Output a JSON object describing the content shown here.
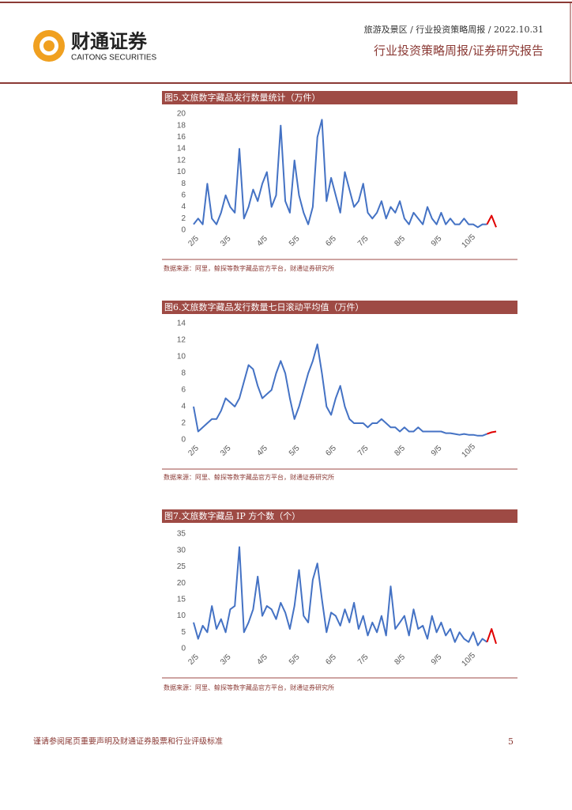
{
  "header": {
    "company": "财通证券",
    "company_en": "CAITONG SECURITIES",
    "breadcrumb": "旅游及景区 / 行业投资策略周报 / 2022.10.31",
    "report_type": "行业投资策略周报/证券研究报告"
  },
  "chart_data": [
    {
      "type": "line",
      "title": "图5.文旅数字藏品发行数量统计（万件）",
      "categories": [
        "2/5",
        null,
        null,
        null,
        null,
        null,
        null,
        "3/5",
        null,
        null,
        null,
        null,
        null,
        null,
        null,
        "4/5",
        null,
        null,
        null,
        null,
        null,
        null,
        "5/5",
        null,
        null,
        null,
        null,
        null,
        null,
        null,
        "6/5",
        null,
        null,
        null,
        null,
        null,
        null,
        "7/5",
        null,
        null,
        null,
        null,
        null,
        null,
        null,
        "8/5",
        null,
        null,
        null,
        null,
        null,
        null,
        null,
        "9/5",
        null,
        null,
        null,
        null,
        null,
        null,
        "10/5",
        null,
        null,
        null,
        null,
        null,
        null
      ],
      "series": [
        {
          "color": "#4472c4",
          "values": [
            1,
            2,
            1,
            8,
            2,
            1,
            3,
            6,
            4,
            3,
            14,
            2,
            4,
            7,
            5,
            8,
            10,
            4,
            6,
            18,
            5,
            3,
            12,
            6,
            3,
            1,
            4,
            16,
            19,
            5,
            9,
            6,
            3,
            10,
            7,
            4,
            5,
            8,
            3,
            2,
            3,
            5,
            2,
            4,
            3,
            5,
            2,
            1,
            3,
            2,
            1,
            4,
            2,
            1,
            3,
            1,
            2,
            1,
            1,
            2,
            1,
            1,
            0.5,
            1,
            1,
            null,
            null
          ]
        },
        {
          "color": "#e00000",
          "values": [
            null,
            null,
            null,
            null,
            null,
            null,
            null,
            null,
            null,
            null,
            null,
            null,
            null,
            null,
            null,
            null,
            null,
            null,
            null,
            null,
            null,
            null,
            null,
            null,
            null,
            null,
            null,
            null,
            null,
            null,
            null,
            null,
            null,
            null,
            null,
            null,
            null,
            null,
            null,
            null,
            null,
            null,
            null,
            null,
            null,
            null,
            null,
            null,
            null,
            null,
            null,
            null,
            null,
            null,
            null,
            null,
            null,
            null,
            null,
            null,
            null,
            null,
            null,
            null,
            1,
            2.5,
            0.5
          ]
        }
      ],
      "ylim": [
        0,
        20
      ],
      "yticks": [
        0,
        2,
        4,
        6,
        8,
        10,
        12,
        14,
        16,
        18,
        20
      ],
      "source": "数据来源：阿里，鲸探等数字藏品官方平台，财通证券研究所"
    },
    {
      "type": "line",
      "title": "图6.文旅数字藏品发行数量七日滚动平均值（万件）",
      "categories": [
        "2/5",
        null,
        null,
        null,
        null,
        null,
        null,
        "3/5",
        null,
        null,
        null,
        null,
        null,
        null,
        null,
        "4/5",
        null,
        null,
        null,
        null,
        null,
        null,
        "5/5",
        null,
        null,
        null,
        null,
        null,
        null,
        null,
        "6/5",
        null,
        null,
        null,
        null,
        null,
        null,
        "7/5",
        null,
        null,
        null,
        null,
        null,
        null,
        null,
        "8/5",
        null,
        null,
        null,
        null,
        null,
        null,
        null,
        "9/5",
        null,
        null,
        null,
        null,
        null,
        null,
        "10/5",
        null,
        null,
        null,
        null,
        null,
        null
      ],
      "series": [
        {
          "color": "#4472c4",
          "values": [
            4,
            1,
            1.5,
            2,
            2.5,
            2.5,
            3.5,
            5,
            4.5,
            4,
            5,
            7,
            9,
            8.5,
            6.5,
            5,
            5.5,
            6,
            8,
            9.5,
            8,
            5,
            2.5,
            4,
            6,
            8,
            9.5,
            11.5,
            8,
            4,
            3,
            5,
            6.5,
            4,
            2.5,
            2,
            2,
            2,
            1.5,
            2,
            2,
            2.5,
            2,
            1.5,
            1.5,
            1,
            1.5,
            1,
            1,
            1.5,
            1,
            1,
            1,
            1,
            1,
            0.8,
            0.8,
            0.7,
            0.6,
            0.7,
            0.6,
            0.6,
            0.5,
            0.5,
            0.7,
            null,
            null
          ]
        },
        {
          "color": "#e00000",
          "values": [
            null,
            null,
            null,
            null,
            null,
            null,
            null,
            null,
            null,
            null,
            null,
            null,
            null,
            null,
            null,
            null,
            null,
            null,
            null,
            null,
            null,
            null,
            null,
            null,
            null,
            null,
            null,
            null,
            null,
            null,
            null,
            null,
            null,
            null,
            null,
            null,
            null,
            null,
            null,
            null,
            null,
            null,
            null,
            null,
            null,
            null,
            null,
            null,
            null,
            null,
            null,
            null,
            null,
            null,
            null,
            null,
            null,
            null,
            null,
            null,
            null,
            null,
            null,
            null,
            0.7,
            0.9,
            1
          ]
        }
      ],
      "ylim": [
        0,
        14
      ],
      "yticks": [
        0,
        2,
        4,
        6,
        8,
        10,
        12,
        14
      ],
      "source": "数据来源：阿里、鲸探等数字藏品官方平台，财通证券研究所"
    },
    {
      "type": "line",
      "title": "图7.文旅数字藏品 IP 方个数（个）",
      "categories": [
        "2/5",
        null,
        null,
        null,
        null,
        null,
        null,
        "3/5",
        null,
        null,
        null,
        null,
        null,
        null,
        null,
        "4/5",
        null,
        null,
        null,
        null,
        null,
        null,
        "5/5",
        null,
        null,
        null,
        null,
        null,
        null,
        null,
        "6/5",
        null,
        null,
        null,
        null,
        null,
        null,
        "7/5",
        null,
        null,
        null,
        null,
        null,
        null,
        null,
        "8/5",
        null,
        null,
        null,
        null,
        null,
        null,
        null,
        "9/5",
        null,
        null,
        null,
        null,
        null,
        null,
        "10/5",
        null,
        null,
        null,
        null,
        null,
        null
      ],
      "series": [
        {
          "color": "#4472c4",
          "values": [
            8,
            3,
            7,
            5,
            13,
            6,
            9,
            5,
            12,
            13,
            31,
            5,
            8,
            12,
            22,
            10,
            13,
            12,
            9,
            14,
            11,
            6,
            13,
            24,
            10,
            8,
            21,
            26,
            15,
            5,
            11,
            10,
            7,
            12,
            8,
            14,
            6,
            10,
            4,
            8,
            5,
            10,
            4,
            19,
            6,
            8,
            10,
            4,
            12,
            6,
            7,
            3,
            10,
            5,
            8,
            4,
            6,
            2,
            5,
            3,
            2,
            5,
            1,
            3,
            2,
            null,
            null
          ]
        },
        {
          "color": "#e00000",
          "values": [
            null,
            null,
            null,
            null,
            null,
            null,
            null,
            null,
            null,
            null,
            null,
            null,
            null,
            null,
            null,
            null,
            null,
            null,
            null,
            null,
            null,
            null,
            null,
            null,
            null,
            null,
            null,
            null,
            null,
            null,
            null,
            null,
            null,
            null,
            null,
            null,
            null,
            null,
            null,
            null,
            null,
            null,
            null,
            null,
            null,
            null,
            null,
            null,
            null,
            null,
            null,
            null,
            null,
            null,
            null,
            null,
            null,
            null,
            null,
            null,
            null,
            null,
            null,
            null,
            2,
            6,
            1.5
          ]
        }
      ],
      "ylim": [
        0,
        35
      ],
      "yticks": [
        0,
        5,
        10,
        15,
        20,
        25,
        30,
        35
      ],
      "source": "数据来源：阿里、鲸探等数字藏品官方平台，财通证券研究所"
    }
  ],
  "footer": {
    "disclaimer": "谨请参阅尾页重要声明及财通证券股票和行业评级标准",
    "page": "5"
  }
}
